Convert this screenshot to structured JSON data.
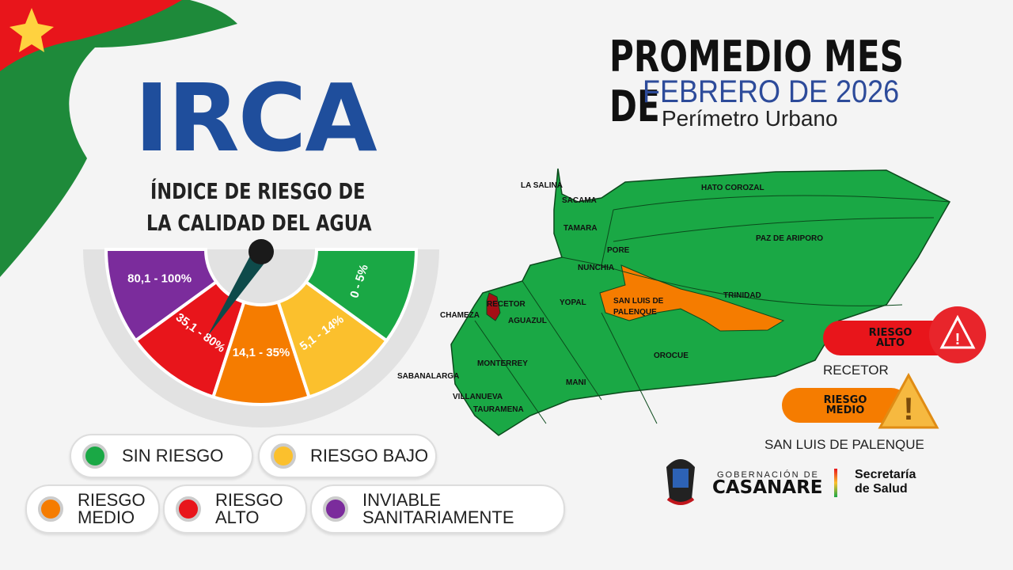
{
  "header": {
    "logo": "IRCA",
    "subtitle_line1": "ÍNDICE DE RIESGO DE",
    "subtitle_line2": "LA CALIDAD DEL AGUA"
  },
  "title": {
    "line1": "PROMEDIO MES DE",
    "line2": "FEBRERO DE 2026",
    "line3": "Perímetro Urbano"
  },
  "gauge": {
    "segments": [
      {
        "label": "80,1 - 100%",
        "color": "#7b2c9c"
      },
      {
        "label": "35,1 - 80%",
        "color": "#e8151b"
      },
      {
        "label": "14,1 - 35%",
        "color": "#f57c00"
      },
      {
        "label": "5,1 - 14%",
        "color": "#fbc02d"
      },
      {
        "label": "0 - 5%",
        "color": "#1aa845"
      }
    ]
  },
  "legend": [
    {
      "label": "SIN RIESGO",
      "color": "#1aa845"
    },
    {
      "label": "RIESGO BAJO",
      "color": "#fbc02d"
    },
    {
      "label": "RIESGO MEDIO",
      "color": "#f57c00"
    },
    {
      "label": "RIESGO ALTO",
      "color": "#e8151b"
    },
    {
      "label": "INVIABLE SANITARIAMENTE",
      "color": "#7b2c9c"
    }
  ],
  "map": {
    "municipalities": [
      "LA SALINA",
      "SACAMA",
      "TAMARA",
      "HATO COROZAL",
      "PAZ DE ARIPORO",
      "PORE",
      "NUNCHIA",
      "SAN LUIS DE PALENQUE",
      "TRINIDAD",
      "RECETOR",
      "CHAMEZA",
      "AGUAZUL",
      "YOPAL",
      "OROCUE",
      "MONTERREY",
      "SABANALARGA",
      "VILLANUEVA",
      "MANI",
      "TAURAMENA"
    ],
    "colors": {
      "sin_riesgo": "#1aa845",
      "medio": "#f57c00",
      "alto": "#a50f15"
    }
  },
  "alerts": [
    {
      "level": "RIESGO ALTO",
      "municipality": "RECETOR",
      "color": "#e8151b",
      "icon": "warning-icon"
    },
    {
      "level": "RIESGO MEDIO",
      "municipality": "SAN LUIS DE PALENQUE",
      "color": "#f57c00",
      "icon": "warning-icon"
    }
  ],
  "footer": {
    "gov_small": "GOBERNACIÓN DE",
    "gov_big": "CASANARE",
    "sec1": "Secretaría",
    "sec2": "de Salud"
  }
}
